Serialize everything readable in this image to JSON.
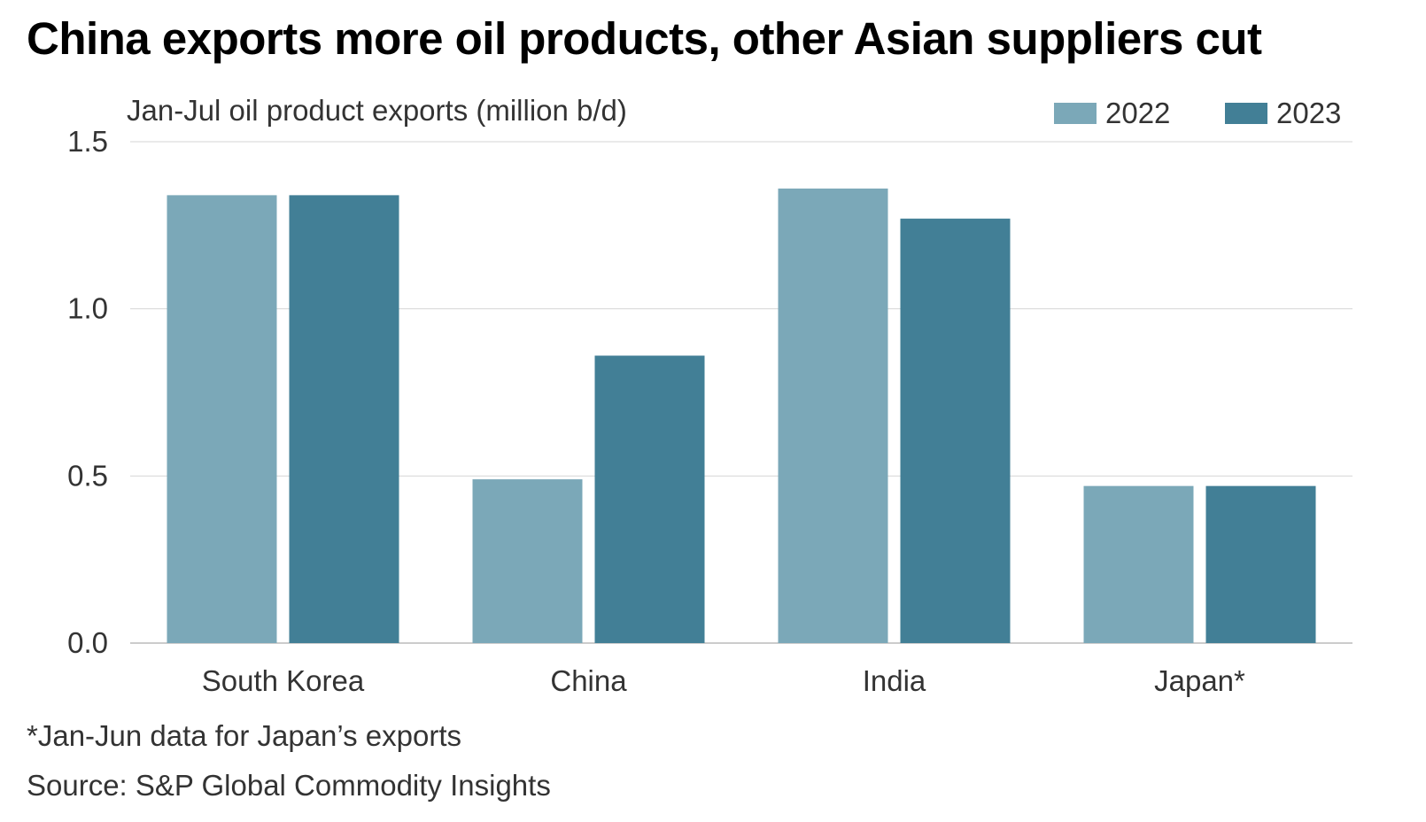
{
  "title": "China exports more oil products, other Asian suppliers cut",
  "footnote": "*Jan-Jun data for Japan’s exports",
  "source": "Source: S&P Global Commodity Insights",
  "colors": {
    "series_2022": "#7ba8b8",
    "series_2023": "#427f96",
    "grid": "#d6d6d6",
    "axis_text": "#333333"
  },
  "chart_data": {
    "type": "bar",
    "title": "China exports more oil products, other Asian suppliers cut",
    "ylabel": "Jan-Jul oil product exports (million b/d)",
    "xlabel": "",
    "categories": [
      "South Korea",
      "China",
      "India",
      "Japan*"
    ],
    "series": [
      {
        "name": "2022",
        "values": [
          1.34,
          0.49,
          1.36,
          0.47
        ]
      },
      {
        "name": "2023",
        "values": [
          1.34,
          0.86,
          1.27,
          0.47
        ]
      }
    ],
    "ylim": [
      0,
      1.5
    ],
    "yticks": [
      "0.0",
      "0.5",
      "1.0",
      "1.5"
    ],
    "grid": true,
    "legend_position": "top-right"
  }
}
